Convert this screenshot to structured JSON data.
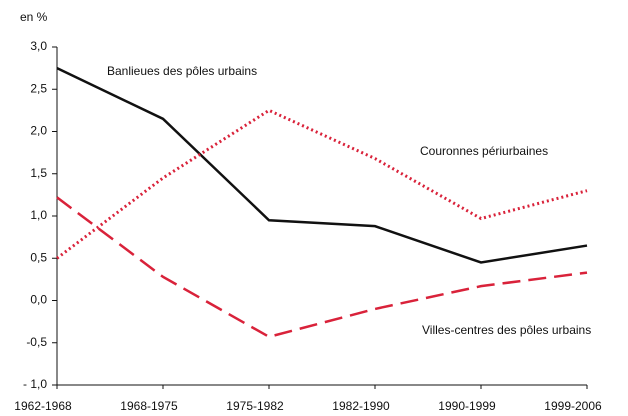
{
  "chart_data": {
    "type": "line",
    "y_label": "en %",
    "categories": [
      "1962-1968",
      "1968-1975",
      "1975-1982",
      "1982-1990",
      "1990-1999",
      "1999-2006"
    ],
    "series": [
      {
        "name": "Banlieues des pôles urbains",
        "color": "#111111",
        "style": "solid",
        "values": [
          2.75,
          2.15,
          0.95,
          0.88,
          0.45,
          0.65
        ]
      },
      {
        "name": "Couronnes périurbaines",
        "color": "#d9223a",
        "style": "dotted",
        "values": [
          0.5,
          1.45,
          2.25,
          1.68,
          0.97,
          1.3
        ]
      },
      {
        "name": "Villes-centres des pôles urbains",
        "color": "#d9223a",
        "style": "dashed",
        "values": [
          1.22,
          0.28,
          -0.43,
          -0.1,
          0.17,
          0.33
        ]
      }
    ],
    "ylim": [
      -1,
      3
    ],
    "yticks": [
      {
        "value": 3,
        "label": "3,0"
      },
      {
        "value": 2.5,
        "label": "2,5"
      },
      {
        "value": 2,
        "label": "2,0"
      },
      {
        "value": 1.5,
        "label": "1,5"
      },
      {
        "value": 1,
        "label": "1,0"
      },
      {
        "value": 0.5,
        "label": "0,5"
      },
      {
        "value": 0,
        "label": "0,0"
      },
      {
        "value": -0.5,
        "label": "-0,5"
      },
      {
        "value": -1,
        "label": "- 1,0"
      }
    ],
    "grid": false
  }
}
